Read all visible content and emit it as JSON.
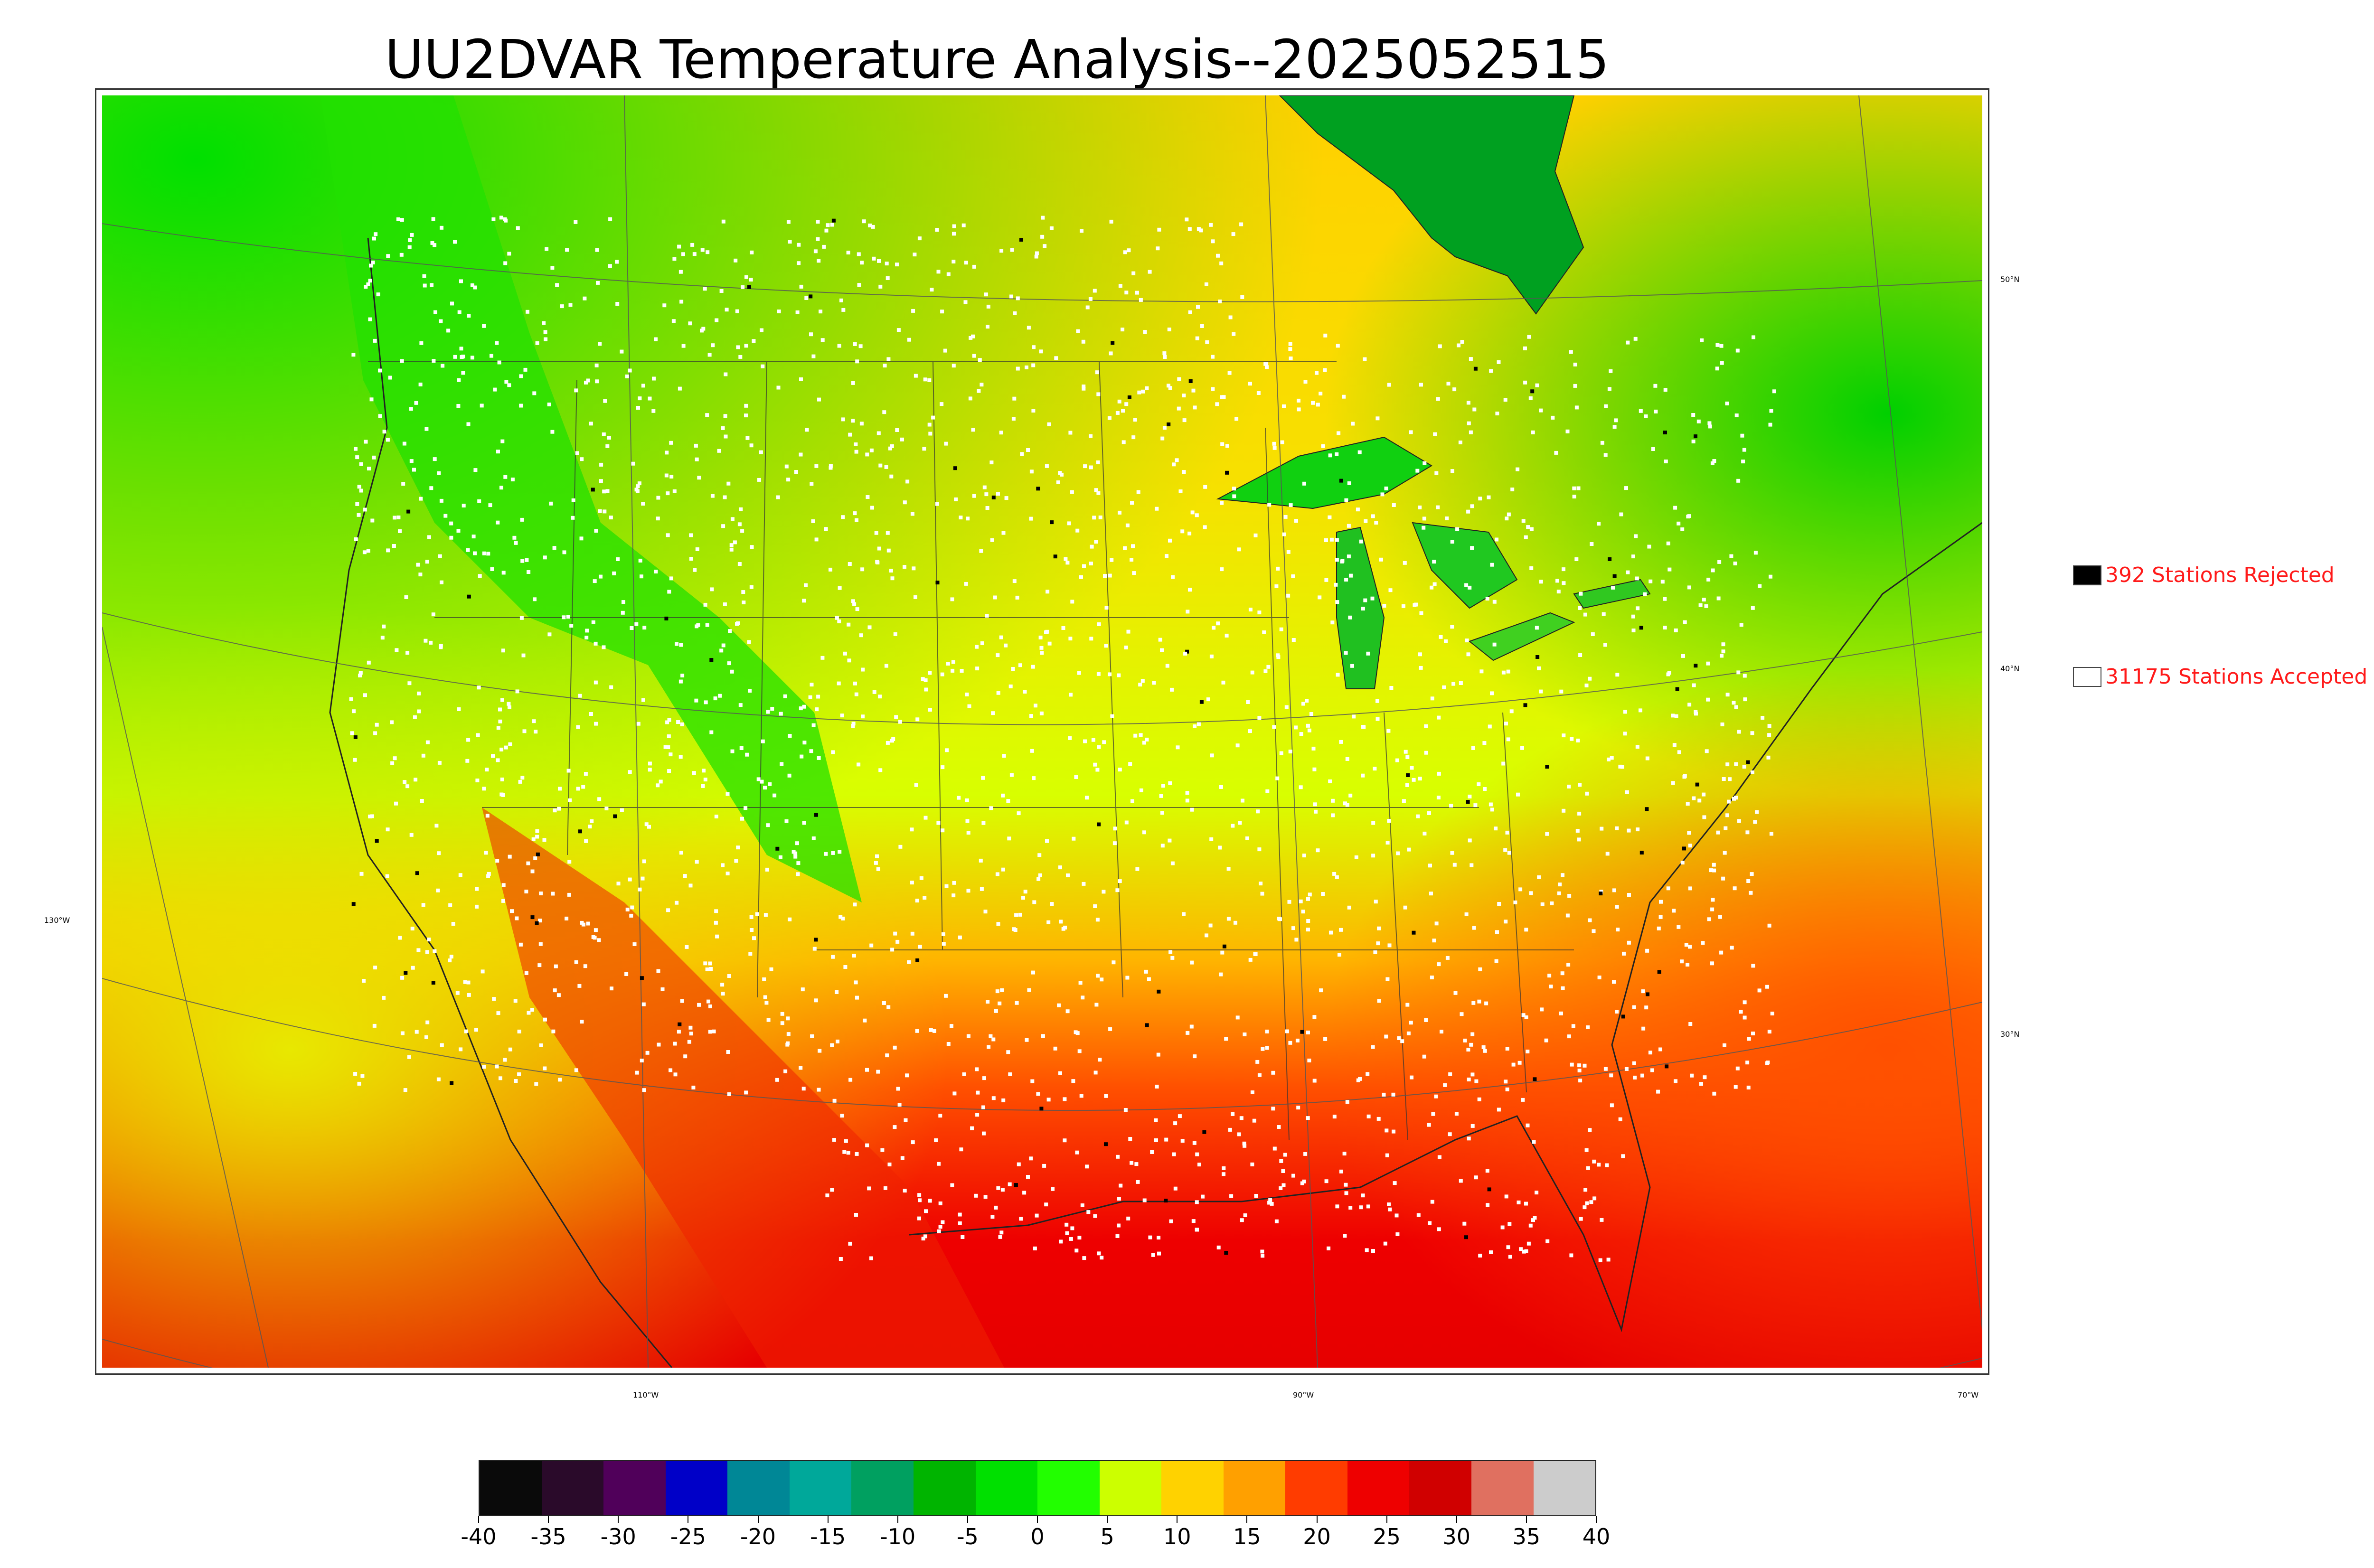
{
  "title": "UU2DVAR Temperature Analysis--2025052515",
  "map": {
    "longitude_labels": [
      "130°W",
      "110°W",
      "90°W",
      "70°W"
    ],
    "latitude_labels": [
      "50°N",
      "40°N",
      "30°N"
    ]
  },
  "legend": {
    "rejected": {
      "text": "392 Stations Rejected",
      "color": "#000000"
    },
    "accepted": {
      "text": "31175 Stations Accepted",
      "color": "#ffffff"
    }
  },
  "colorbar": {
    "ticks": [
      "-40",
      "-35",
      "-30",
      "-25",
      "-20",
      "-15",
      "-10",
      "-5",
      "0",
      "5",
      "10",
      "15",
      "20",
      "25",
      "30",
      "35",
      "40"
    ],
    "colors": [
      "#0a0a0a",
      "#2a0a2a",
      "#50005a",
      "#0000c8",
      "#008796",
      "#00a89a",
      "#00a060",
      "#00b400",
      "#00e000",
      "#22ff00",
      "#ccff00",
      "#ffd200",
      "#ffa000",
      "#ff3c00",
      "#ee0000",
      "#d00000",
      "#e07060",
      "#cccccc"
    ]
  }
}
